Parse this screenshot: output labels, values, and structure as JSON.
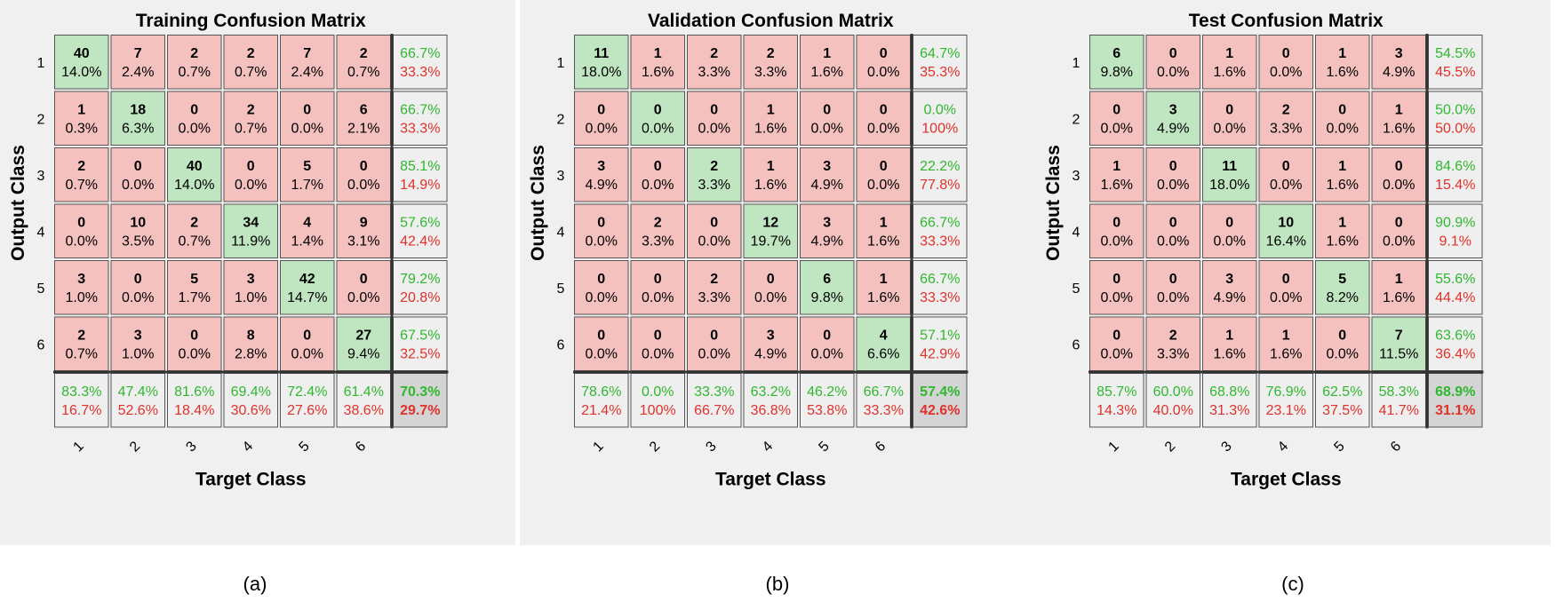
{
  "colors": {
    "diagonal": "#bfe6c0",
    "offdiagonal": "#f4c1bf",
    "summary": "#efefef",
    "overall": "#d4d4d4",
    "good_text": "#2fb82f",
    "bad_text": "#e0312b",
    "panel_background": "#f0f0f0"
  },
  "chart_data": [
    {
      "type": "heatmap",
      "caption": "(a)",
      "title": "Training Confusion Matrix",
      "xlabel": "Target Class",
      "ylabel": "Output Class",
      "classes": [
        "1",
        "2",
        "3",
        "4",
        "5",
        "6"
      ],
      "cells": [
        [
          {
            "n": "40",
            "p": "14.0%"
          },
          {
            "n": "7",
            "p": "2.4%"
          },
          {
            "n": "2",
            "p": "0.7%"
          },
          {
            "n": "2",
            "p": "0.7%"
          },
          {
            "n": "7",
            "p": "2.4%"
          },
          {
            "n": "2",
            "p": "0.7%"
          }
        ],
        [
          {
            "n": "1",
            "p": "0.3%"
          },
          {
            "n": "18",
            "p": "6.3%"
          },
          {
            "n": "0",
            "p": "0.0%"
          },
          {
            "n": "2",
            "p": "0.7%"
          },
          {
            "n": "0",
            "p": "0.0%"
          },
          {
            "n": "6",
            "p": "2.1%"
          }
        ],
        [
          {
            "n": "2",
            "p": "0.7%"
          },
          {
            "n": "0",
            "p": "0.0%"
          },
          {
            "n": "40",
            "p": "14.0%"
          },
          {
            "n": "0",
            "p": "0.0%"
          },
          {
            "n": "5",
            "p": "1.7%"
          },
          {
            "n": "0",
            "p": "0.0%"
          }
        ],
        [
          {
            "n": "0",
            "p": "0.0%"
          },
          {
            "n": "10",
            "p": "3.5%"
          },
          {
            "n": "2",
            "p": "0.7%"
          },
          {
            "n": "34",
            "p": "11.9%"
          },
          {
            "n": "4",
            "p": "1.4%"
          },
          {
            "n": "9",
            "p": "3.1%"
          }
        ],
        [
          {
            "n": "3",
            "p": "1.0%"
          },
          {
            "n": "0",
            "p": "0.0%"
          },
          {
            "n": "5",
            "p": "1.7%"
          },
          {
            "n": "3",
            "p": "1.0%"
          },
          {
            "n": "42",
            "p": "14.7%"
          },
          {
            "n": "0",
            "p": "0.0%"
          }
        ],
        [
          {
            "n": "2",
            "p": "0.7%"
          },
          {
            "n": "3",
            "p": "1.0%"
          },
          {
            "n": "0",
            "p": "0.0%"
          },
          {
            "n": "8",
            "p": "2.8%"
          },
          {
            "n": "0",
            "p": "0.0%"
          },
          {
            "n": "27",
            "p": "9.4%"
          }
        ]
      ],
      "row_summary": [
        [
          "66.7%",
          "33.3%"
        ],
        [
          "66.7%",
          "33.3%"
        ],
        [
          "85.1%",
          "14.9%"
        ],
        [
          "57.6%",
          "42.4%"
        ],
        [
          "79.2%",
          "20.8%"
        ],
        [
          "67.5%",
          "32.5%"
        ]
      ],
      "col_summary": [
        [
          "83.3%",
          "16.7%"
        ],
        [
          "47.4%",
          "52.6%"
        ],
        [
          "81.6%",
          "18.4%"
        ],
        [
          "69.4%",
          "30.6%"
        ],
        [
          "72.4%",
          "27.6%"
        ],
        [
          "61.4%",
          "38.6%"
        ]
      ],
      "overall": [
        "70.3%",
        "29.7%"
      ]
    },
    {
      "type": "heatmap",
      "caption": "(b)",
      "title": "Validation Confusion Matrix",
      "xlabel": "Target Class",
      "ylabel": "Output Class",
      "classes": [
        "1",
        "2",
        "3",
        "4",
        "5",
        "6"
      ],
      "cells": [
        [
          {
            "n": "11",
            "p": "18.0%"
          },
          {
            "n": "1",
            "p": "1.6%"
          },
          {
            "n": "2",
            "p": "3.3%"
          },
          {
            "n": "2",
            "p": "3.3%"
          },
          {
            "n": "1",
            "p": "1.6%"
          },
          {
            "n": "0",
            "p": "0.0%"
          }
        ],
        [
          {
            "n": "0",
            "p": "0.0%"
          },
          {
            "n": "0",
            "p": "0.0%"
          },
          {
            "n": "0",
            "p": "0.0%"
          },
          {
            "n": "1",
            "p": "1.6%"
          },
          {
            "n": "0",
            "p": "0.0%"
          },
          {
            "n": "0",
            "p": "0.0%"
          }
        ],
        [
          {
            "n": "3",
            "p": "4.9%"
          },
          {
            "n": "0",
            "p": "0.0%"
          },
          {
            "n": "2",
            "p": "3.3%"
          },
          {
            "n": "1",
            "p": "1.6%"
          },
          {
            "n": "3",
            "p": "4.9%"
          },
          {
            "n": "0",
            "p": "0.0%"
          }
        ],
        [
          {
            "n": "0",
            "p": "0.0%"
          },
          {
            "n": "2",
            "p": "3.3%"
          },
          {
            "n": "0",
            "p": "0.0%"
          },
          {
            "n": "12",
            "p": "19.7%"
          },
          {
            "n": "3",
            "p": "4.9%"
          },
          {
            "n": "1",
            "p": "1.6%"
          }
        ],
        [
          {
            "n": "0",
            "p": "0.0%"
          },
          {
            "n": "0",
            "p": "0.0%"
          },
          {
            "n": "2",
            "p": "3.3%"
          },
          {
            "n": "0",
            "p": "0.0%"
          },
          {
            "n": "6",
            "p": "9.8%"
          },
          {
            "n": "1",
            "p": "1.6%"
          }
        ],
        [
          {
            "n": "0",
            "p": "0.0%"
          },
          {
            "n": "0",
            "p": "0.0%"
          },
          {
            "n": "0",
            "p": "0.0%"
          },
          {
            "n": "3",
            "p": "4.9%"
          },
          {
            "n": "0",
            "p": "0.0%"
          },
          {
            "n": "4",
            "p": "6.6%"
          }
        ]
      ],
      "row_summary": [
        [
          "64.7%",
          "35.3%"
        ],
        [
          "0.0%",
          "100%"
        ],
        [
          "22.2%",
          "77.8%"
        ],
        [
          "66.7%",
          "33.3%"
        ],
        [
          "66.7%",
          "33.3%"
        ],
        [
          "57.1%",
          "42.9%"
        ]
      ],
      "col_summary": [
        [
          "78.6%",
          "21.4%"
        ],
        [
          "0.0%",
          "100%"
        ],
        [
          "33.3%",
          "66.7%"
        ],
        [
          "63.2%",
          "36.8%"
        ],
        [
          "46.2%",
          "53.8%"
        ],
        [
          "66.7%",
          "33.3%"
        ]
      ],
      "overall": [
        "57.4%",
        "42.6%"
      ]
    },
    {
      "type": "heatmap",
      "caption": "(c)",
      "title": "Test Confusion Matrix",
      "xlabel": "Target Class",
      "ylabel": "Output Class",
      "classes": [
        "1",
        "2",
        "3",
        "4",
        "5",
        "6"
      ],
      "cells": [
        [
          {
            "n": "6",
            "p": "9.8%"
          },
          {
            "n": "0",
            "p": "0.0%"
          },
          {
            "n": "1",
            "p": "1.6%"
          },
          {
            "n": "0",
            "p": "0.0%"
          },
          {
            "n": "1",
            "p": "1.6%"
          },
          {
            "n": "3",
            "p": "4.9%"
          }
        ],
        [
          {
            "n": "0",
            "p": "0.0%"
          },
          {
            "n": "3",
            "p": "4.9%"
          },
          {
            "n": "0",
            "p": "0.0%"
          },
          {
            "n": "2",
            "p": "3.3%"
          },
          {
            "n": "0",
            "p": "0.0%"
          },
          {
            "n": "1",
            "p": "1.6%"
          }
        ],
        [
          {
            "n": "1",
            "p": "1.6%"
          },
          {
            "n": "0",
            "p": "0.0%"
          },
          {
            "n": "11",
            "p": "18.0%"
          },
          {
            "n": "0",
            "p": "0.0%"
          },
          {
            "n": "1",
            "p": "1.6%"
          },
          {
            "n": "0",
            "p": "0.0%"
          }
        ],
        [
          {
            "n": "0",
            "p": "0.0%"
          },
          {
            "n": "0",
            "p": "0.0%"
          },
          {
            "n": "0",
            "p": "0.0%"
          },
          {
            "n": "10",
            "p": "16.4%"
          },
          {
            "n": "1",
            "p": "1.6%"
          },
          {
            "n": "0",
            "p": "0.0%"
          }
        ],
        [
          {
            "n": "0",
            "p": "0.0%"
          },
          {
            "n": "0",
            "p": "0.0%"
          },
          {
            "n": "3",
            "p": "4.9%"
          },
          {
            "n": "0",
            "p": "0.0%"
          },
          {
            "n": "5",
            "p": "8.2%"
          },
          {
            "n": "1",
            "p": "1.6%"
          }
        ],
        [
          {
            "n": "0",
            "p": "0.0%"
          },
          {
            "n": "2",
            "p": "3.3%"
          },
          {
            "n": "1",
            "p": "1.6%"
          },
          {
            "n": "1",
            "p": "1.6%"
          },
          {
            "n": "0",
            "p": "0.0%"
          },
          {
            "n": "7",
            "p": "11.5%"
          }
        ]
      ],
      "row_summary": [
        [
          "54.5%",
          "45.5%"
        ],
        [
          "50.0%",
          "50.0%"
        ],
        [
          "84.6%",
          "15.4%"
        ],
        [
          "90.9%",
          "9.1%"
        ],
        [
          "55.6%",
          "44.4%"
        ],
        [
          "63.6%",
          "36.4%"
        ]
      ],
      "col_summary": [
        [
          "85.7%",
          "14.3%"
        ],
        [
          "60.0%",
          "40.0%"
        ],
        [
          "68.8%",
          "31.3%"
        ],
        [
          "76.9%",
          "23.1%"
        ],
        [
          "62.5%",
          "37.5%"
        ],
        [
          "58.3%",
          "41.7%"
        ]
      ],
      "overall": [
        "68.9%",
        "31.1%"
      ]
    }
  ]
}
